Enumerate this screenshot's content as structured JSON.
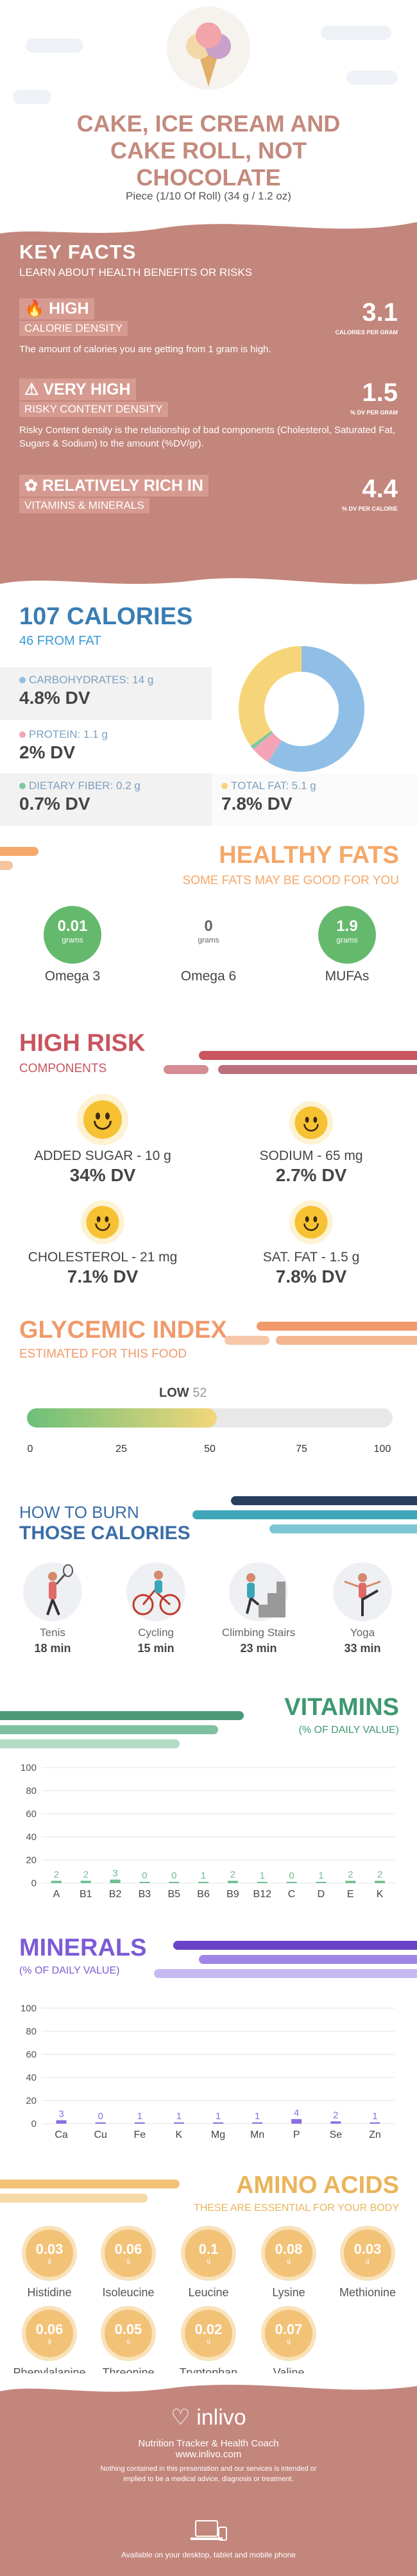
{
  "header": {
    "title_lines": [
      "CAKE, ICE CREAM AND",
      "CAKE ROLL, NOT",
      "CHOCOLATE"
    ],
    "serving": "Piece (1/10 Of Roll) (34 g / 1.2 oz)",
    "image_icon": "ice-cream-icon"
  },
  "key_facts": {
    "title": "KEY FACTS",
    "subtitle": "LEARN ABOUT HEALTH BENEFITS OR RISKS",
    "items": [
      {
        "label_strong": "HIGH",
        "label_sub": "CALORIE DENSITY",
        "value": "3.1",
        "unit": "CALORIES PER GRAM",
        "description": "The amount of calories you are getting from 1 gram is high.",
        "icon": "flame-icon"
      },
      {
        "label_strong": "VERY HIGH",
        "label_sub": "RISKY CONTENT DENSITY",
        "value": "1.5",
        "unit": "% DV PER GRAM",
        "description": "Risky Content density is the relationship of bad components (Cholesterol, Saturated Fat, Sugars & Sodium) to the amount (%DV/gr).",
        "icon": "warning-icon"
      },
      {
        "label_strong": "RELATIVELY RICH  IN",
        "label_sub": "VITAMINS & MINERALS",
        "value": "4.4",
        "unit": "% DV PER CALORIE",
        "description": "",
        "icon": "leaf-icon"
      }
    ]
  },
  "calories": {
    "title": "107 CALORIES",
    "from_fat": "46 FROM FAT",
    "nutrients": [
      {
        "label": "CARBOHYDRATES: 14 g",
        "value": "4.8% DV",
        "color": "#8fbfe6"
      },
      {
        "label": "PROTEIN: 1.1 g",
        "value": "2% DV",
        "color": "#f4a4b6"
      },
      {
        "label": "DIETARY FIBER: 0.2 g",
        "value": "0.7% DV",
        "color": "#7dc8a0"
      },
      {
        "label": "TOTAL FAT: 5.1 g",
        "value": "7.8% DV",
        "color": "#f6d57a"
      }
    ],
    "donut": [
      {
        "name": "carbs",
        "fraction": 0.59,
        "color": "#8fbfe6"
      },
      {
        "name": "protein",
        "fraction": 0.05,
        "color": "#f4a4b6"
      },
      {
        "name": "fiber",
        "fraction": 0.01,
        "color": "#7dc8a0"
      },
      {
        "name": "fat",
        "fraction": 0.35,
        "color": "#f6d57a"
      }
    ]
  },
  "fats": {
    "title": "HEALTHY FATS",
    "subtitle": "SOME FATS MAY BE GOOD FOR YOU",
    "items": [
      {
        "value": "0.01",
        "unit": "grams",
        "name": "Omega 3",
        "active": true
      },
      {
        "value": "0",
        "unit": "grams",
        "name": "Omega 6",
        "active": false
      },
      {
        "value": "1.9",
        "unit": "grams",
        "name": "MUFAs",
        "active": true
      }
    ]
  },
  "risk": {
    "title": "HIGH RISK",
    "subtitle": "COMPONENTS",
    "items": [
      {
        "label": "ADDED SUGAR - 10 g",
        "value": "34% DV",
        "icon": "smile-icon"
      },
      {
        "label": "SODIUM - 65 mg",
        "value": "2.7% DV",
        "icon": "smile-icon"
      },
      {
        "label": "CHOLESTEROL - 21 mg",
        "value": "7.1% DV",
        "icon": "smile-icon"
      },
      {
        "label": "SAT. FAT - 1.5 g",
        "value": "7.8% DV",
        "icon": "smile-icon"
      }
    ]
  },
  "glycemic": {
    "title": "GLYCEMIC INDEX",
    "subtitle": "ESTIMATED FOR THIS FOOD",
    "level": "LOW",
    "value": "52",
    "value_num": 52,
    "ticks": [
      "0",
      "25",
      "50",
      "75",
      "100"
    ]
  },
  "burn": {
    "title_line1": "HOW TO BURN",
    "title_line2": "THOSE CALORIES",
    "items": [
      {
        "name": "Tenis",
        "minutes": "18 min",
        "icon": "tennis-icon"
      },
      {
        "name": "Cycling",
        "minutes": "15 min",
        "icon": "cycling-icon"
      },
      {
        "name": "Climbing Stairs",
        "minutes": "23 min",
        "icon": "stairs-icon"
      },
      {
        "name": "Yoga",
        "minutes": "33 min",
        "icon": "yoga-icon"
      }
    ]
  },
  "vitamins": {
    "title": "VITAMINS",
    "subtitle": "(% OF DAILY VALUE)"
  },
  "minerals": {
    "title": "MINERALS",
    "subtitle": "(% OF DAILY VALUE)"
  },
  "chart_data": [
    {
      "type": "bar",
      "categories": [
        "A",
        "B1",
        "B2",
        "B3",
        "B5",
        "B6",
        "B9",
        "B12",
        "C",
        "D",
        "E",
        "K"
      ],
      "values": [
        2,
        2,
        3,
        0,
        0,
        1,
        2,
        1,
        0,
        1,
        2,
        2
      ],
      "ylim": [
        0,
        100
      ],
      "yticks": [
        "100",
        "80",
        "60",
        "40",
        "20",
        "0"
      ],
      "color": "#6dbf8f",
      "title": "VITAMINS"
    },
    {
      "type": "bar",
      "categories": [
        "Ca",
        "Cu",
        "Fe",
        "K",
        "Mg",
        "Mn",
        "P",
        "Se",
        "Zn"
      ],
      "values": [
        3,
        0,
        1,
        1,
        1,
        1,
        4,
        2,
        1
      ],
      "ylim": [
        0,
        100
      ],
      "yticks": [
        "100",
        "80",
        "60",
        "40",
        "20",
        "0"
      ],
      "color": "#8a6ee0",
      "title": "MINERALS"
    }
  ],
  "amino": {
    "title": "AMINO ACIDS",
    "subtitle": "THESE ARE ESSENTIAL FOR YOUR BODY",
    "items": [
      {
        "value": "0.03",
        "unit": "g",
        "name": "Histidine"
      },
      {
        "value": "0.06",
        "unit": "g",
        "name": "Isoleucine"
      },
      {
        "value": "0.1",
        "unit": "g",
        "name": "Leucine"
      },
      {
        "value": "0.08",
        "unit": "g",
        "name": "Lysine"
      },
      {
        "value": "0.03",
        "unit": "g",
        "name": "Methionine"
      },
      {
        "value": "0.06",
        "unit": "g",
        "name": "Phenylalanine"
      },
      {
        "value": "0.05",
        "unit": "g",
        "name": "Threonine"
      },
      {
        "value": "0.02",
        "unit": "g",
        "name": "Tryptophan"
      },
      {
        "value": "0.07",
        "unit": "g",
        "name": "Valine"
      }
    ]
  },
  "footer": {
    "brand": "inlivo",
    "tagline_1": "Nutrition Tracker & Health Coach",
    "tagline_2": "www.inlivo.com",
    "disclaimer": "Nothing contained in this presentation and our services is intended or implied to be a medical advice, diagnosis or treatment.",
    "availability": "Available on your desktop, tablet and mobile phone"
  }
}
